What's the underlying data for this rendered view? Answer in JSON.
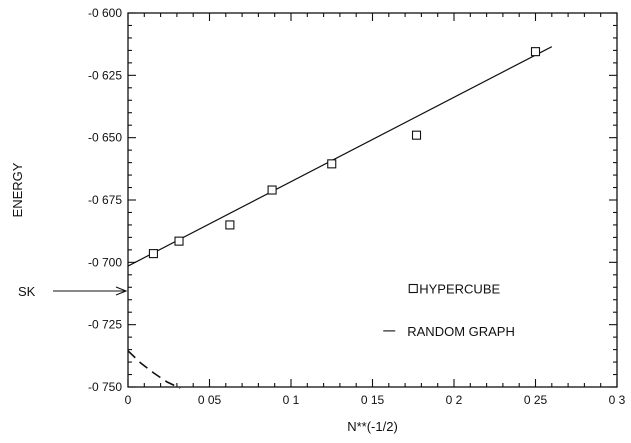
{
  "chart_data": {
    "type": "scatter",
    "xlabel": "N**(-1/2)",
    "ylabel": "ENERGY",
    "xlim": [
      0,
      0.3
    ],
    "ylim": [
      -0.75,
      -0.6
    ],
    "x_ticks": [
      0,
      0.05,
      0.1,
      0.15,
      0.2,
      0.25,
      0.3
    ],
    "x_tick_labels": [
      "0",
      "0 05",
      "0 1",
      "0 15",
      "0 2",
      "0 25",
      "0 3"
    ],
    "y_ticks": [
      -0.75,
      -0.725,
      -0.7,
      -0.675,
      -0.65,
      -0.625,
      -0.6
    ],
    "y_tick_labels": [
      "-0 750",
      "-0 725",
      "-0 700",
      "-0 675",
      "-0 650",
      "-0 625",
      "-0 600"
    ],
    "grid": false,
    "series": [
      {
        "name": "HYPERCUBE",
        "marker": "open-square",
        "x": [
          0.0156,
          0.0313,
          0.0625,
          0.0884,
          0.125,
          0.177,
          0.25
        ],
        "y": [
          -0.6965,
          -0.6915,
          -0.685,
          -0.671,
          -0.6605,
          -0.649,
          -0.6155
        ]
      },
      {
        "name": "RANDOM GRAPH",
        "style": "dashed",
        "x": [
          0,
          0.008,
          0.016,
          0.024,
          0.032
        ],
        "y": [
          -0.7355,
          -0.7405,
          -0.7445,
          -0.748,
          -0.7505
        ]
      }
    ],
    "fit_line": {
      "x": [
        0,
        0.26
      ],
      "y": [
        -0.7015,
        -0.6135
      ]
    },
    "annotation": {
      "text": "SK",
      "y": -0.7115
    },
    "legend": {
      "position": "lower-right",
      "entries": [
        "HYPERCUBE",
        "RANDOM GRAPH"
      ]
    }
  }
}
